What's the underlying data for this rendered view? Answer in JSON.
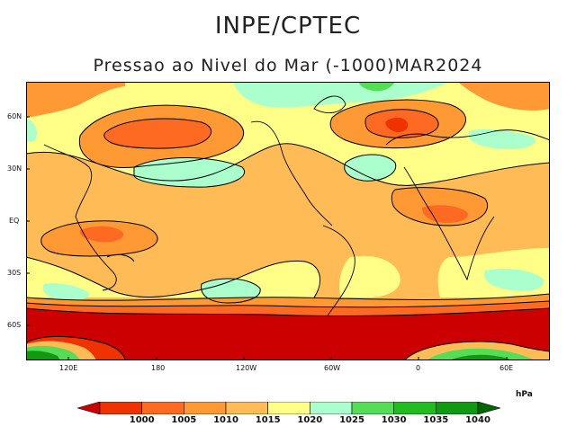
{
  "header": {
    "institution": "INPE/CPTEC",
    "map_title": "Pressao ao Nivel do Mar (-1000)MAR2024"
  },
  "axes": {
    "lat_labels": [
      "60N",
      "30N",
      "EQ",
      "30S",
      "60S"
    ],
    "lon_labels": [
      "120E",
      "180",
      "120W",
      "60W",
      "0",
      "60E"
    ]
  },
  "legend": {
    "unit": "hPa",
    "levels": [
      "1000",
      "1005",
      "1010",
      "1015",
      "1020",
      "1025",
      "1030",
      "1035",
      "1040"
    ],
    "colors": [
      "#cc0000",
      "#ee3300",
      "#ff6a22",
      "#ff9933",
      "#ffbb55",
      "#ffff88",
      "#aaffcc",
      "#55dd55",
      "#22bb22",
      "#119911",
      "#006600"
    ]
  },
  "colors": {
    "land_outline": "#000000",
    "contour_line": "#000000"
  }
}
